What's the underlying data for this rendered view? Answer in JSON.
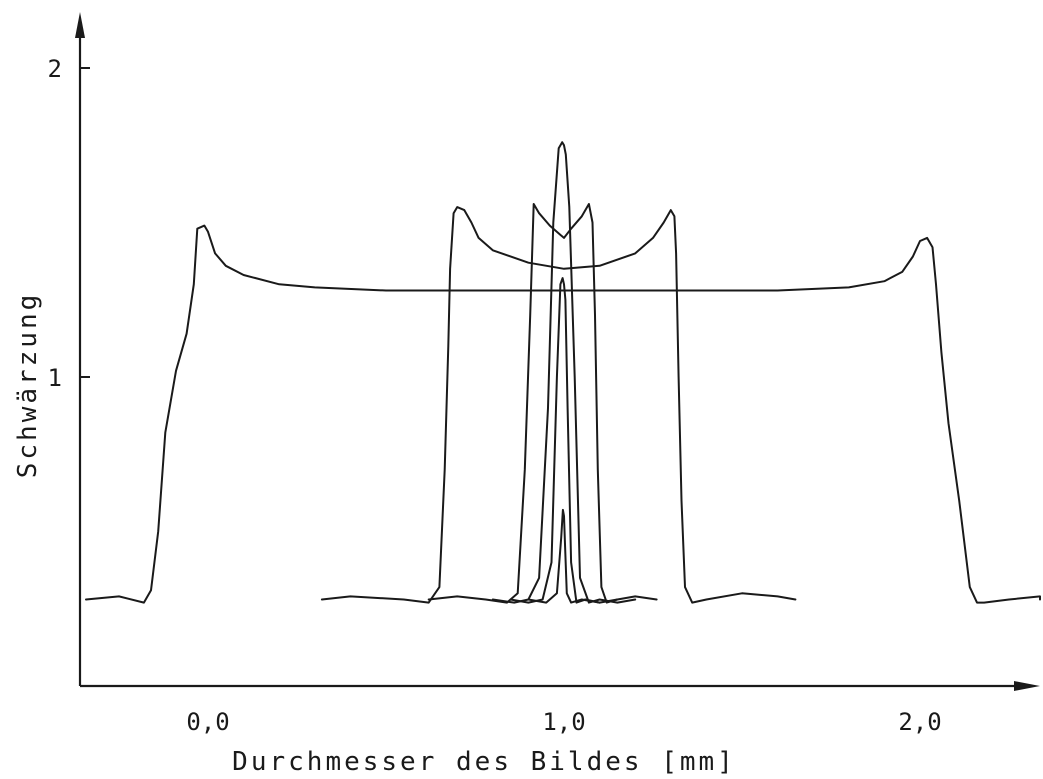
{
  "chart_data": {
    "type": "line",
    "title": "",
    "xlabel": "Durchmesser des Bildes [mm]",
    "ylabel": "Schwärzung",
    "xlim": [
      -0.35,
      2.45
    ],
    "ylim": [
      0,
      2.1
    ],
    "x_ticks": [
      {
        "value": 0.0,
        "label": "0,0"
      },
      {
        "value": 1.0,
        "label": "1,0"
      },
      {
        "value": 2.0,
        "label": "2,0"
      }
    ],
    "y_ticks": [
      {
        "value": 1,
        "label": "1"
      },
      {
        "value": 2,
        "label": "2"
      }
    ],
    "grid": false,
    "legend": "none",
    "series": [
      {
        "x": [
          -0.35,
          -0.25,
          -0.18,
          -0.16,
          -0.14,
          -0.12,
          -0.09,
          -0.06,
          -0.04,
          -0.03,
          -0.01,
          0.0,
          0.02,
          0.05,
          0.1,
          0.2,
          0.3,
          0.5,
          0.8,
          1.0,
          1.3,
          1.6,
          1.8,
          1.9,
          1.95,
          1.98,
          2.0,
          2.02,
          2.035,
          2.045,
          2.06,
          2.08,
          2.11,
          2.14,
          2.16,
          2.18,
          2.25,
          2.35,
          2.45
        ],
        "y": [
          0.28,
          0.29,
          0.27,
          0.31,
          0.5,
          0.82,
          1.02,
          1.14,
          1.3,
          1.48,
          1.49,
          1.47,
          1.4,
          1.36,
          1.33,
          1.3,
          1.29,
          1.28,
          1.28,
          1.28,
          1.28,
          1.28,
          1.29,
          1.31,
          1.34,
          1.39,
          1.44,
          1.45,
          1.42,
          1.3,
          1.08,
          0.85,
          0.6,
          0.32,
          0.27,
          0.27,
          0.28,
          0.29,
          0.28
        ]
      },
      {
        "x": [
          0.32,
          0.4,
          0.55,
          0.62,
          0.65,
          0.665,
          0.675,
          0.68,
          0.69,
          0.7,
          0.72,
          0.74,
          0.76,
          0.8,
          0.9,
          1.0,
          1.1,
          1.2,
          1.25,
          1.28,
          1.3,
          1.31,
          1.315,
          1.322,
          1.33,
          1.34,
          1.36,
          1.4,
          1.5,
          1.6,
          1.65
        ],
        "y": [
          0.28,
          0.29,
          0.28,
          0.27,
          0.32,
          0.7,
          1.1,
          1.35,
          1.53,
          1.55,
          1.54,
          1.5,
          1.45,
          1.41,
          1.37,
          1.35,
          1.36,
          1.4,
          1.45,
          1.5,
          1.54,
          1.52,
          1.4,
          1.0,
          0.6,
          0.32,
          0.27,
          0.28,
          0.3,
          0.29,
          0.28
        ]
      },
      {
        "x": [
          0.62,
          0.7,
          0.78,
          0.84,
          0.87,
          0.89,
          0.905,
          0.915,
          0.93,
          0.96,
          0.99,
          1.0,
          1.02,
          1.05,
          1.07,
          1.08,
          1.087,
          1.095,
          1.105,
          1.12,
          1.15,
          1.2,
          1.26
        ],
        "y": [
          0.28,
          0.29,
          0.28,
          0.27,
          0.3,
          0.7,
          1.2,
          1.56,
          1.53,
          1.49,
          1.46,
          1.45,
          1.48,
          1.52,
          1.56,
          1.5,
          1.2,
          0.7,
          0.32,
          0.27,
          0.28,
          0.29,
          0.28
        ]
      },
      {
        "x": [
          0.8,
          0.86,
          0.9,
          0.93,
          0.955,
          0.97,
          0.985,
          0.995,
          1.0,
          1.005,
          1.015,
          1.03,
          1.045,
          1.07,
          1.1,
          1.15,
          1.2
        ],
        "y": [
          0.28,
          0.27,
          0.28,
          0.35,
          0.9,
          1.5,
          1.74,
          1.76,
          1.75,
          1.72,
          1.55,
          1.0,
          0.35,
          0.27,
          0.28,
          0.27,
          0.28
        ]
      },
      {
        "x": [
          0.85,
          0.9,
          0.94,
          0.965,
          0.98,
          0.99,
          0.996,
          1.0,
          1.004,
          1.01,
          1.02,
          1.035,
          1.06,
          1.1,
          1.15
        ],
        "y": [
          0.28,
          0.27,
          0.28,
          0.4,
          1.0,
          1.3,
          1.32,
          1.3,
          1.25,
          0.9,
          0.4,
          0.27,
          0.28,
          0.27,
          0.28
        ]
      },
      {
        "x": [
          0.9,
          0.95,
          0.98,
          0.992,
          0.997,
          1.0,
          1.003,
          1.008,
          1.02,
          1.05,
          1.1
        ],
        "y": [
          0.28,
          0.27,
          0.3,
          0.48,
          0.57,
          0.55,
          0.45,
          0.3,
          0.27,
          0.28,
          0.27
        ]
      }
    ]
  }
}
